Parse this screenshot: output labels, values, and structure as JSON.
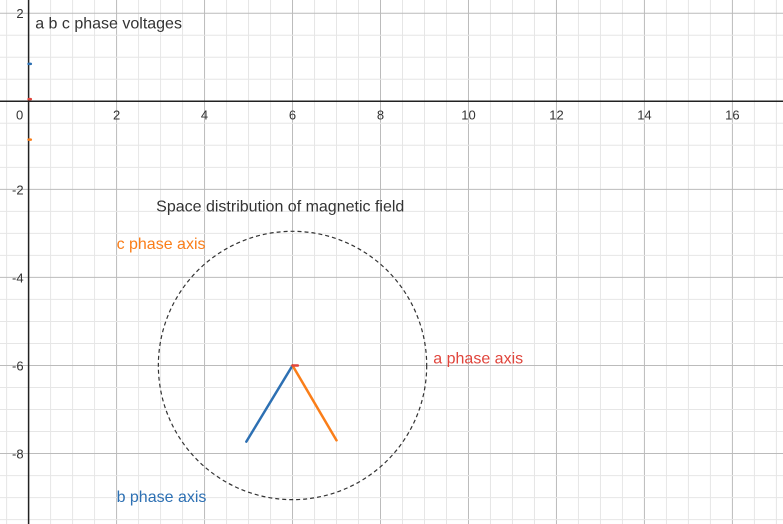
{
  "chart_data": {
    "type": "line",
    "grid": true,
    "xlim": [
      -0.65,
      17.15
    ],
    "ylim": [
      -9.6,
      2.3
    ],
    "x_ticks": [
      "0",
      "2",
      "4",
      "6",
      "8",
      "10",
      "12",
      "14",
      "16"
    ],
    "y_ticks": [
      "2",
      "-2",
      "-4",
      "-6",
      "-8"
    ],
    "series": [
      {
        "color": "#2d70b3",
        "points": [
          [
            6,
            -6
          ],
          [
            4.95,
            -7.73
          ]
        ]
      },
      {
        "color": "#fa7e19",
        "points": [
          [
            6,
            -6
          ],
          [
            7.0,
            -7.7
          ]
        ]
      },
      {
        "color": "#e0453c",
        "points": [
          [
            6,
            -6
          ],
          [
            6.12,
            -6
          ]
        ]
      },
      {
        "color": "#2d70b3",
        "points": [
          [
            0,
            0.85
          ],
          [
            0.05,
            0.85
          ]
        ]
      },
      {
        "color": "#e0453c",
        "points": [
          [
            0,
            0.05
          ],
          [
            0.05,
            0.05
          ]
        ]
      },
      {
        "color": "#fa7e19",
        "points": [
          [
            0,
            -0.87
          ],
          [
            0.05,
            -0.87
          ]
        ]
      }
    ],
    "circle": {
      "center": [
        6,
        -6
      ],
      "radius": 3.05,
      "style": "dashed",
      "color": "#333333"
    },
    "annotations": [
      {
        "text": "a b c phase voltages",
        "x": 0.15,
        "y": 1.65,
        "color": "#333333"
      },
      {
        "text": "Space distribution of magnetic field",
        "x": 2.9,
        "y": -2.5,
        "color": "#333333"
      },
      {
        "text": "c phase axis",
        "x": 2.0,
        "y": -3.35,
        "color": "#fa7e19"
      },
      {
        "text": "a phase axis",
        "x": 9.2,
        "y": -5.95,
        "color": "#e0453c"
      },
      {
        "text": "b phase axis",
        "x": 2.0,
        "y": -9.1,
        "color": "#2d70b3"
      }
    ]
  }
}
